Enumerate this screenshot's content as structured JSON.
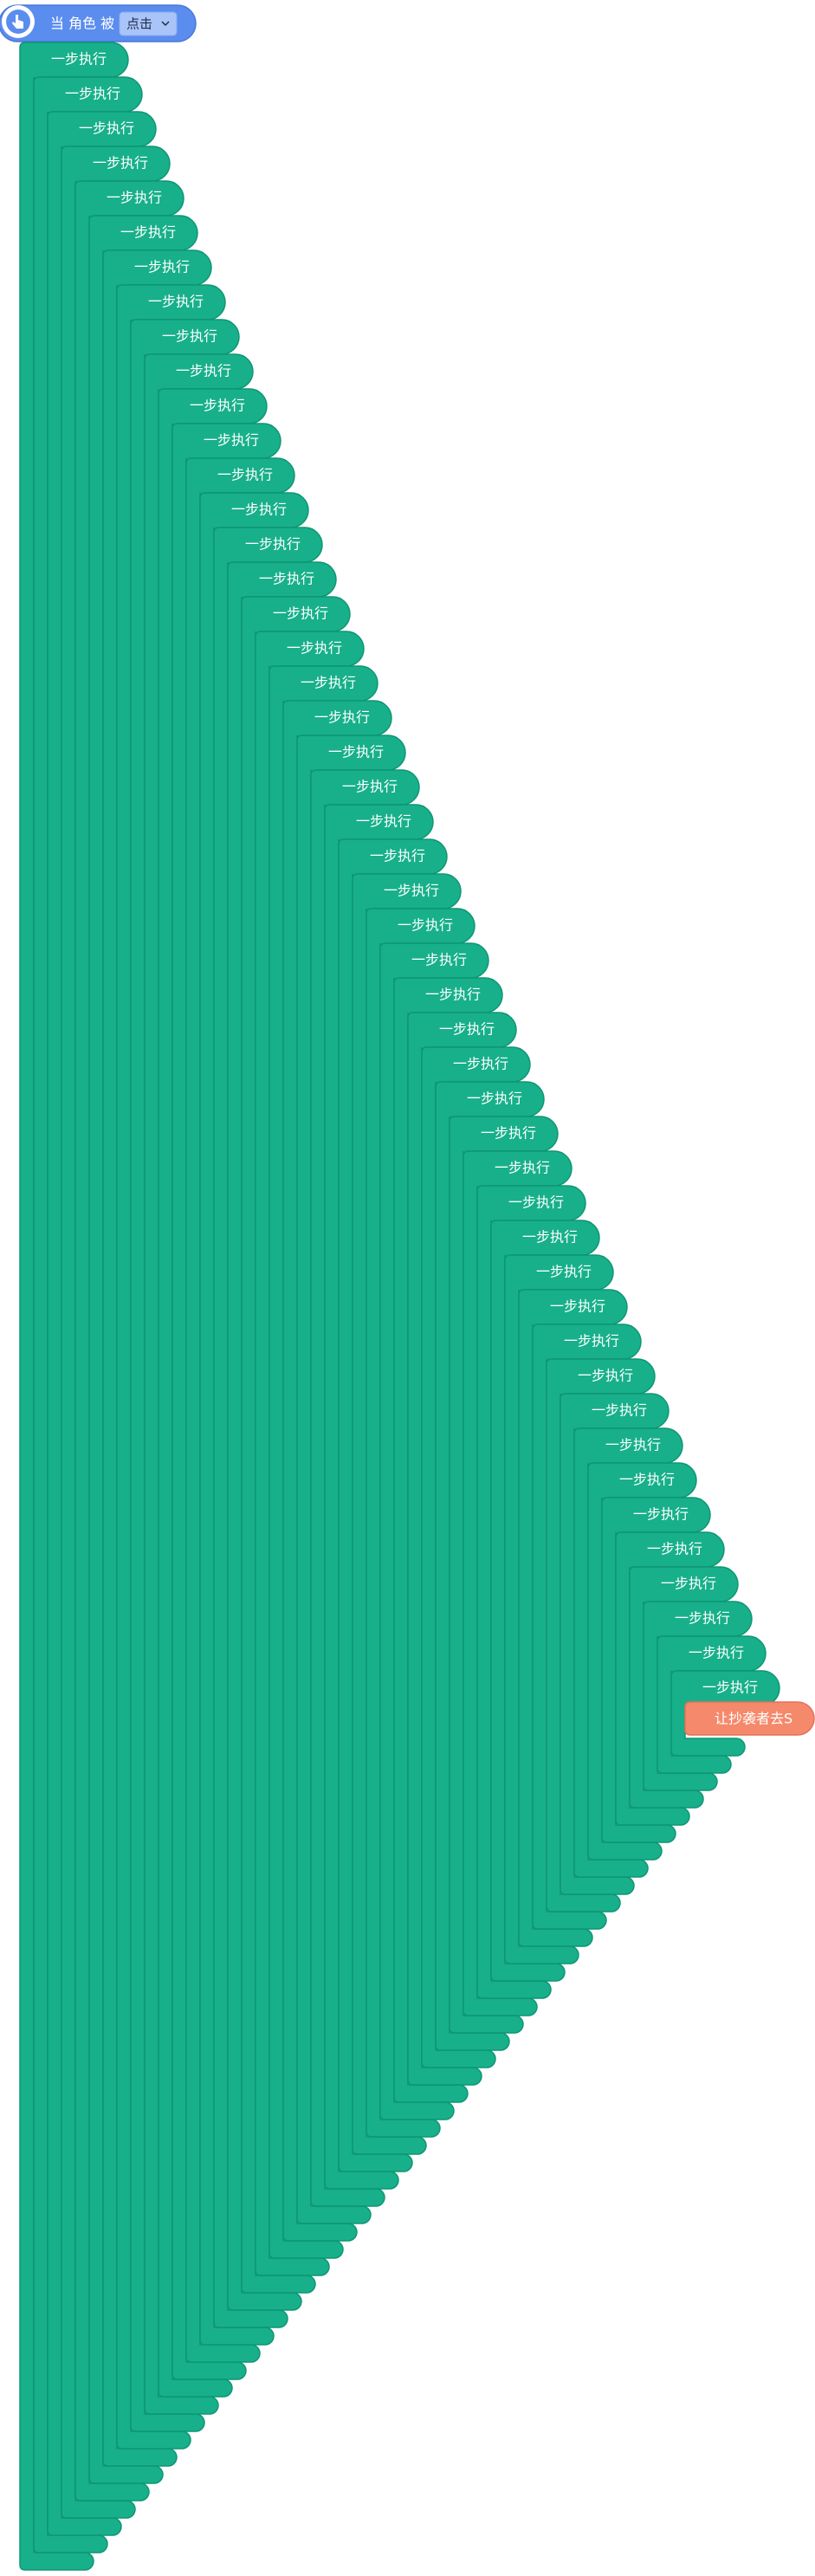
{
  "hat": {
    "text": "当 角色 被",
    "dropdown": "点击"
  },
  "blocks": [
    "一步执行",
    "一步执行",
    "一步执行",
    "一步执行",
    "一步执行",
    "一步执行",
    "一步执行",
    "一步执行",
    "一步执行",
    "一步执行",
    "一步执行",
    "一步执行",
    "一步执行",
    "一步执行",
    "一步执行",
    "一步执行",
    "一步执行",
    "一步执行",
    "一步执行",
    "一步执行",
    "一步执行",
    "一步执行",
    "一步执行",
    "一步执行",
    "一步执行",
    "一步执行",
    "一步执行",
    "一步执行",
    "一步执行",
    "一步执行",
    "一步执行",
    "一步执行",
    "一步执行",
    "一步执行",
    "一步执行",
    "一步执行",
    "一步执行",
    "一步执行",
    "一步执行",
    "一步执行",
    "一步执行",
    "一步执行",
    "一步执行",
    "一步执行",
    "一步执行",
    "一步执行",
    "一步执行",
    "一步执行"
  ],
  "inner": {
    "text": "让抄袭者去S"
  }
}
